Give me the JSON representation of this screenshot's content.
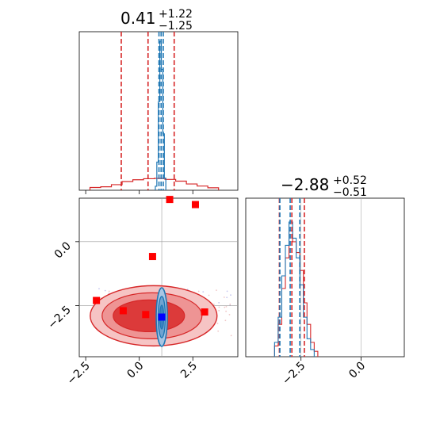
{
  "chart_data": [
    {
      "type": "histogram",
      "panel": "top-left",
      "title": {
        "value": "0.41",
        "plus": "+1.22",
        "minus": "−1.25"
      },
      "xlim": [
        -2.8,
        4.6
      ],
      "series": [
        {
          "name": "",
          "color": "#d62728",
          "bins": [
            -2.3,
            -1.8,
            -1.3,
            -0.8,
            -0.3,
            0.2,
            0.7,
            1.2,
            1.7,
            2.2,
            2.7,
            3.2,
            3.7
          ],
          "counts": [
            8,
            10,
            16,
            25,
            30,
            33,
            34,
            31,
            26,
            18,
            12,
            7
          ]
        },
        {
          "name": "",
          "color": "#1f77b4",
          "bins": [
            0.75,
            0.82,
            0.89,
            0.96,
            1.03,
            1.1,
            1.17,
            1.24
          ],
          "counts": [
            5,
            35,
            110,
            185,
            150,
            70,
            15
          ]
        }
      ],
      "red_quantiles": [
        -0.84,
        0.41,
        1.63
      ],
      "blue_quantiles": [
        0.92,
        1.02,
        1.12
      ]
    },
    {
      "type": "scatter",
      "panel": "bottom-left",
      "xlim": [
        -2.8,
        4.6
      ],
      "ylim": [
        -4.5,
        1.7
      ],
      "xticks": [
        "−2.5",
        "0.0",
        "2.5"
      ],
      "yticks": [
        "0.0",
        "−2.5"
      ],
      "red_markers": [
        [
          1.42,
          1.65
        ],
        [
          2.62,
          1.45
        ],
        [
          0.62,
          -0.58
        ],
        [
          -2.0,
          -2.3
        ],
        [
          -0.75,
          -2.7
        ],
        [
          0.3,
          -2.85
        ],
        [
          3.05,
          -2.75
        ]
      ],
      "blue_marker": [
        1.05,
        -2.95
      ],
      "grid_lines": {
        "x": [
          1.05
        ],
        "y": [
          0.0,
          -2.5
        ]
      }
    },
    {
      "type": "histogram",
      "panel": "bottom-right",
      "title": {
        "value": "−2.88",
        "plus": "+0.52",
        "minus": "−0.51"
      },
      "xlim": [
        -4.8,
        1.8
      ],
      "xticks": [
        "−2.5",
        "0.0"
      ],
      "series": [
        {
          "name": "",
          "color": "#d62728",
          "bins": [
            -3.6,
            -3.45,
            -3.3,
            -3.15,
            -3.0,
            -2.85,
            -2.7,
            -2.55,
            -2.4,
            -2.25,
            -2.1,
            -1.95,
            -1.8
          ],
          "counts": [
            6,
            18,
            38,
            55,
            70,
            64,
            58,
            48,
            30,
            18,
            8,
            3
          ]
        },
        {
          "name": "",
          "color": "#1f77b4",
          "bins": [
            -3.6,
            -3.45,
            -3.3,
            -3.15,
            -3.0,
            -2.85,
            -2.7,
            -2.55,
            -2.4,
            -2.25,
            -2.1,
            -1.95
          ],
          "counts": [
            8,
            22,
            45,
            62,
            75,
            66,
            55,
            40,
            22,
            10,
            4
          ]
        }
      ],
      "red_quantiles": [
        -3.4,
        -2.88,
        -2.36
      ],
      "blue_quantiles": [
        -3.38,
        -2.95,
        -2.55
      ]
    }
  ]
}
